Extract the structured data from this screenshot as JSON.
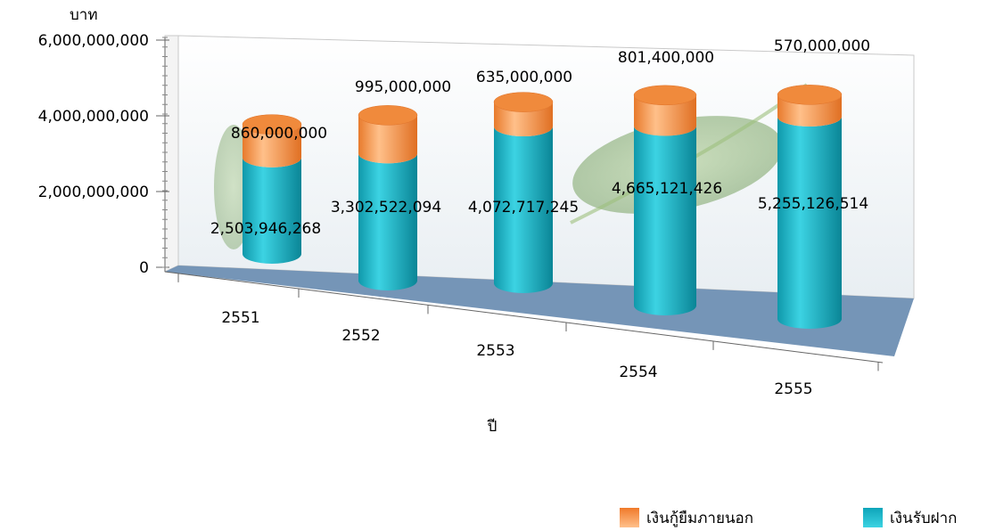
{
  "chart_data": {
    "type": "bar",
    "stacked": true,
    "y_unit_label": "บาท",
    "xlabel": "ปี",
    "ylim": [
      0,
      6000000000
    ],
    "y_ticks": [
      "0",
      "2,000,000,000",
      "4,000,000,000",
      "6,000,000,000"
    ],
    "categories": [
      "2551",
      "2552",
      "2553",
      "2554",
      "2555"
    ],
    "series": [
      {
        "name": "เงินรับฝาก",
        "color": "#1bb6c9",
        "values": [
          2503946268,
          3302522094,
          4072717245,
          4665121426,
          5255126514
        ],
        "labels": [
          "2,503,946,268",
          "3,302,522,094",
          "4,072,717,245",
          "4,665,121,426",
          "5,255,126,514"
        ]
      },
      {
        "name": "เงินกู้ยืมภายนอก",
        "color": "#f5954a",
        "values": [
          860000000,
          995000000,
          635000000,
          801400000,
          570000000
        ],
        "labels": [
          "860,000,000",
          "995,000,000",
          "635,000,000",
          "801,400,000",
          "570,000,000"
        ]
      }
    ],
    "legend_position": "bottom-right"
  }
}
